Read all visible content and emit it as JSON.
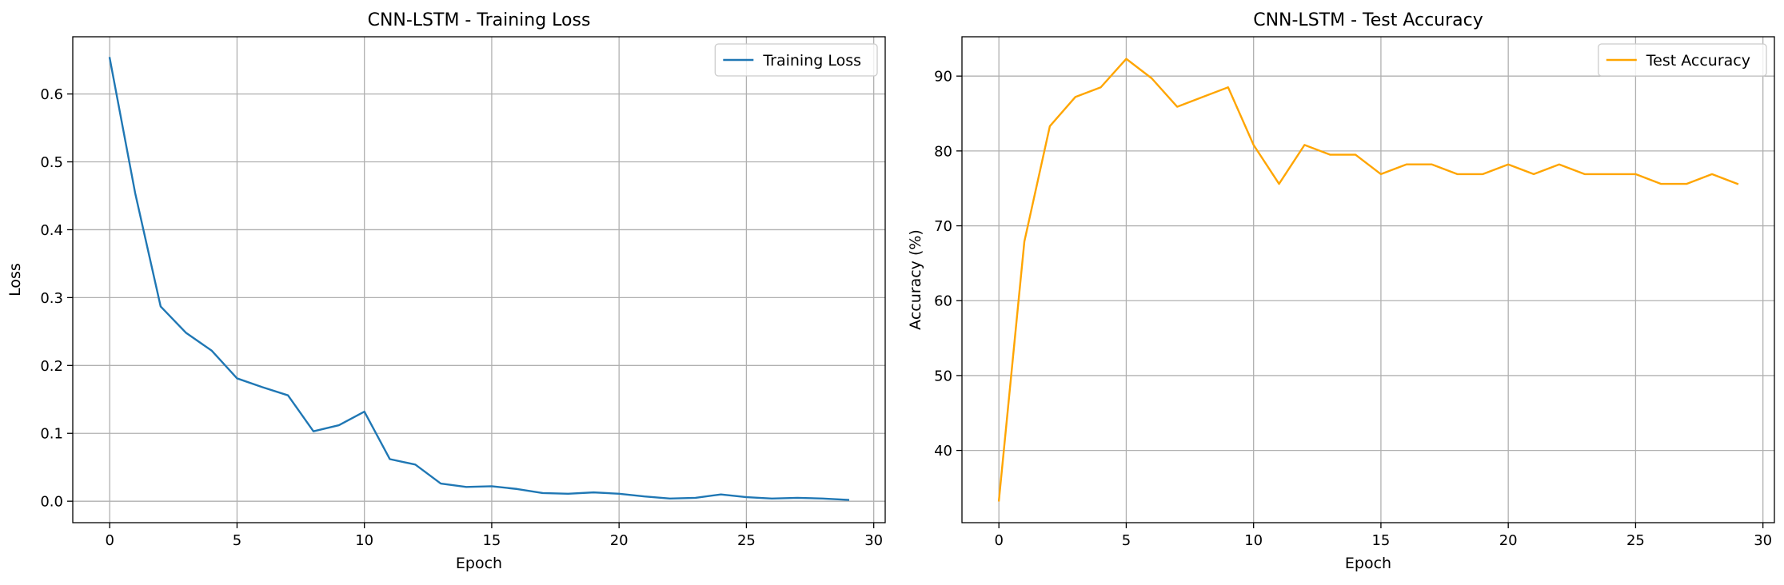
{
  "chart_data": [
    {
      "type": "line",
      "title": "CNN-LSTM - Training Loss",
      "xlabel": "Epoch",
      "ylabel": "Loss",
      "xlim": [
        -1.45,
        30.45
      ],
      "ylim": [
        -0.0316,
        0.6843
      ],
      "xticks": [
        0,
        5,
        10,
        15,
        20,
        25,
        30
      ],
      "yticks": [
        0.0,
        0.1,
        0.2,
        0.3,
        0.4,
        0.5,
        0.6
      ],
      "ytick_labels": [
        "0.0",
        "0.1",
        "0.2",
        "0.3",
        "0.4",
        "0.5",
        "0.6"
      ],
      "grid": true,
      "legend": "top-right",
      "series": [
        {
          "name": "Training Loss",
          "color": "#1f77b4",
          "x": [
            0,
            1,
            2,
            3,
            4,
            5,
            6,
            7,
            8,
            9,
            10,
            11,
            12,
            13,
            14,
            15,
            16,
            17,
            18,
            19,
            20,
            21,
            22,
            23,
            24,
            25,
            26,
            27,
            28,
            29
          ],
          "values": [
            0.653,
            0.454,
            0.287,
            0.248,
            0.222,
            0.181,
            0.168,
            0.156,
            0.103,
            0.112,
            0.132,
            0.062,
            0.054,
            0.026,
            0.021,
            0.022,
            0.018,
            0.012,
            0.011,
            0.013,
            0.011,
            0.007,
            0.004,
            0.005,
            0.01,
            0.006,
            0.004,
            0.005,
            0.004,
            0.002
          ]
        }
      ]
    },
    {
      "type": "line",
      "title": "CNN-LSTM - Test Accuracy",
      "xlabel": "Epoch",
      "ylabel": "Accuracy (%)",
      "xlim": [
        -1.45,
        30.45
      ],
      "ylim": [
        30.35,
        95.25
      ],
      "xticks": [
        0,
        5,
        10,
        15,
        20,
        25,
        30
      ],
      "yticks": [
        40,
        50,
        60,
        70,
        80,
        90
      ],
      "ytick_labels": [
        "40",
        "50",
        "60",
        "70",
        "80",
        "90"
      ],
      "grid": true,
      "legend": "top-right",
      "series": [
        {
          "name": "Test Accuracy",
          "color": "#ffa500",
          "x": [
            0,
            1,
            2,
            3,
            4,
            5,
            6,
            7,
            8,
            9,
            10,
            11,
            12,
            13,
            14,
            15,
            16,
            17,
            18,
            19,
            20,
            21,
            22,
            23,
            24,
            25,
            26,
            27,
            28,
            29
          ],
          "values": [
            33.3,
            67.9,
            83.3,
            87.2,
            88.5,
            92.3,
            89.7,
            85.9,
            87.2,
            88.5,
            80.8,
            75.6,
            80.8,
            79.5,
            79.5,
            76.9,
            78.2,
            78.2,
            76.9,
            76.9,
            78.2,
            76.9,
            78.2,
            76.9,
            76.9,
            76.9,
            75.6,
            75.6,
            76.9,
            75.6
          ]
        }
      ]
    }
  ]
}
